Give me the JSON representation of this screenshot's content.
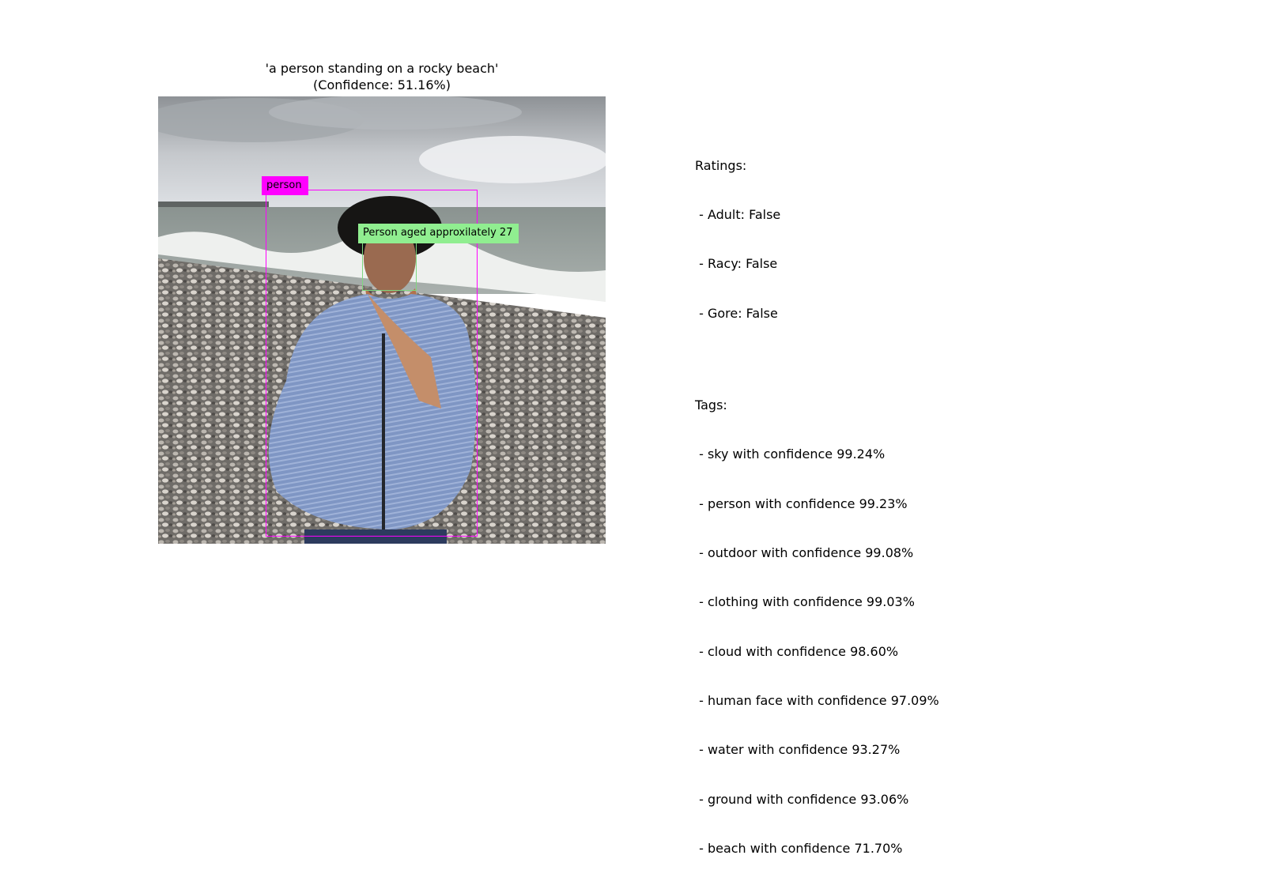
{
  "caption": {
    "line1": "'a person standing on a rocky beach'",
    "line2": "(Confidence: 51.16%)"
  },
  "detections": {
    "object_label": "person",
    "face_label": "Person aged approxilately 27",
    "colors": {
      "object_box": "#ff00ff",
      "face_box": "#90ee90"
    }
  },
  "ratings": {
    "heading": "Ratings:",
    "items": [
      " - Adult: False",
      " - Racy: False",
      " - Gore: False"
    ]
  },
  "tags": {
    "heading": "Tags:",
    "items": [
      " - sky with confidence 99.24%",
      " - person with confidence 99.23%",
      " - outdoor with confidence 99.08%",
      " - clothing with confidence 99.03%",
      " - cloud with confidence 98.60%",
      " - human face with confidence 97.09%",
      " - water with confidence 93.27%",
      " - ground with confidence 93.06%",
      " - beach with confidence 71.70%"
    ]
  }
}
